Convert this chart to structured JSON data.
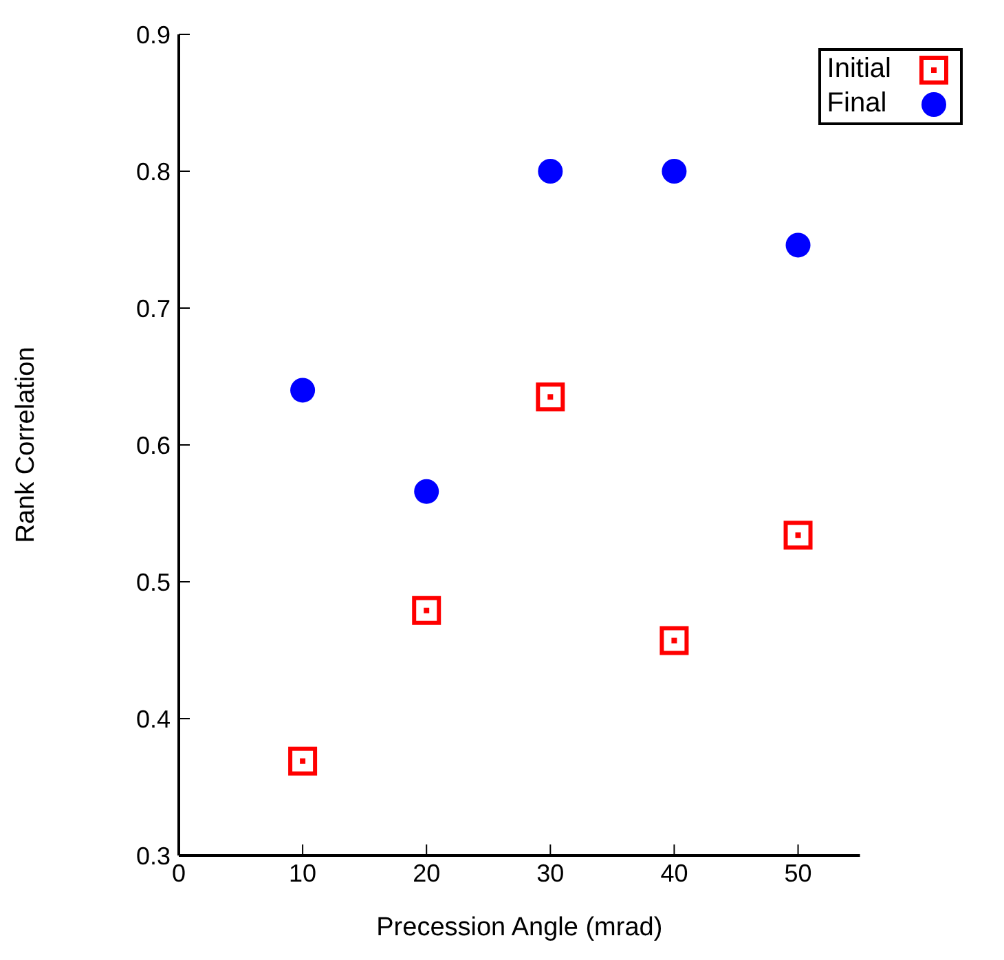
{
  "chart_data": {
    "type": "scatter",
    "xlabel": "Precession Angle (mrad)",
    "ylabel": "Rank Correlation",
    "x": [
      10,
      20,
      30,
      40,
      50
    ],
    "series": [
      {
        "name": "Initial",
        "color": "#ff0000",
        "marker": "square",
        "values": [
          0.369,
          0.479,
          0.635,
          0.457,
          0.534
        ]
      },
      {
        "name": "Final",
        "color": "#0000ff",
        "marker": "circle",
        "values": [
          0.64,
          0.566,
          0.8,
          0.8,
          0.746
        ]
      }
    ],
    "xlim": [
      0,
      55
    ],
    "xticks": [
      0,
      10,
      20,
      30,
      40,
      50
    ],
    "ylim": [
      0.3,
      0.9
    ],
    "yticks": [
      0.3,
      0.4,
      0.5,
      0.6,
      0.7,
      0.8,
      0.9
    ],
    "grid": false,
    "legend": "top right"
  }
}
